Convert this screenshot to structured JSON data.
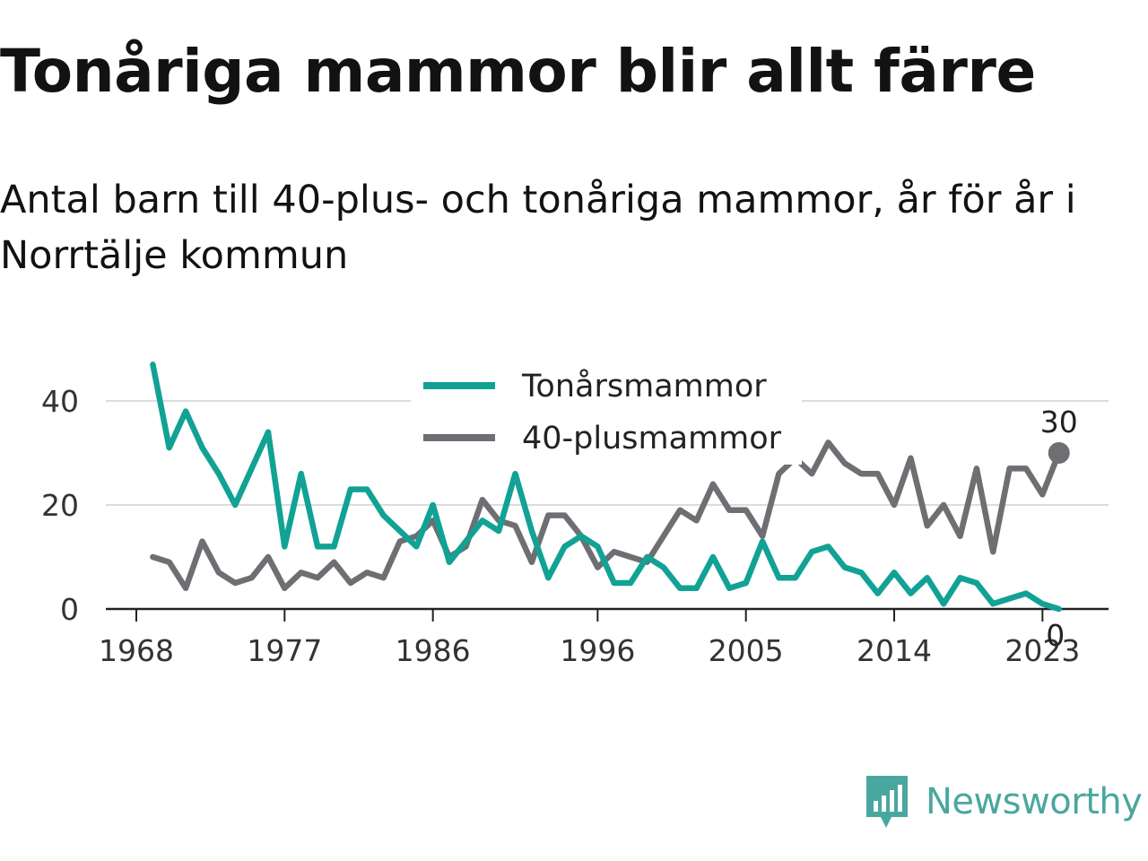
{
  "title": "Tonåriga mammor blir allt färre",
  "subtitle": "Antal barn till 40-plus- och tonåriga mammor, år för år i Norrtälje kommun",
  "brand": {
    "name": "Newsworthy",
    "logo_icon": "bar-chart-speech-bubble-icon",
    "color": "#4aa7a0"
  },
  "chart_data": {
    "type": "line",
    "x": [
      1969,
      1970,
      1971,
      1972,
      1973,
      1974,
      1975,
      1976,
      1977,
      1978,
      1979,
      1980,
      1981,
      1982,
      1983,
      1984,
      1985,
      1986,
      1987,
      1988,
      1989,
      1990,
      1991,
      1992,
      1993,
      1994,
      1995,
      1996,
      1997,
      1998,
      1999,
      2000,
      2001,
      2002,
      2003,
      2004,
      2005,
      2006,
      2007,
      2008,
      2009,
      2010,
      2011,
      2012,
      2013,
      2014,
      2015,
      2016,
      2017,
      2018,
      2019,
      2020,
      2021,
      2022,
      2023,
      2024
    ],
    "series": [
      {
        "name": "Tonårsmammor",
        "color": "#11a295",
        "values": [
          47,
          31,
          38,
          31,
          26,
          20,
          27,
          34,
          12,
          26,
          12,
          12,
          23,
          23,
          18,
          15,
          12,
          20,
          9,
          13,
          17,
          15,
          26,
          15,
          6,
          12,
          14,
          12,
          5,
          5,
          10,
          8,
          4,
          4,
          10,
          4,
          5,
          13,
          6,
          6,
          11,
          12,
          8,
          7,
          3,
          7,
          3,
          6,
          1,
          6,
          5,
          1,
          2,
          3,
          1,
          0
        ]
      },
      {
        "name": "40-plusmammor",
        "color": "#6e6e73",
        "values": [
          10,
          9,
          4,
          13,
          7,
          5,
          6,
          10,
          4,
          7,
          6,
          9,
          5,
          7,
          6,
          13,
          14,
          17,
          10,
          12,
          21,
          17,
          16,
          9,
          18,
          18,
          14,
          8,
          11,
          10,
          9,
          14,
          19,
          17,
          24,
          19,
          19,
          14,
          26,
          29,
          26,
          32,
          28,
          26,
          26,
          20,
          29,
          16,
          20,
          14,
          27,
          11,
          27,
          27,
          22,
          30
        ]
      }
    ],
    "x_ticks": [
      "1968",
      "1977",
      "1986",
      "1996",
      "2005",
      "2014",
      "2023"
    ],
    "y_ticks": [
      "0",
      "20",
      "40"
    ],
    "ylim": [
      0,
      48
    ],
    "xlim": [
      1968,
      2025
    ],
    "grid": true,
    "legend": "top-center",
    "end_labels": {
      "Tonårsmammor": "0",
      "40-plusmammor": "30"
    }
  }
}
